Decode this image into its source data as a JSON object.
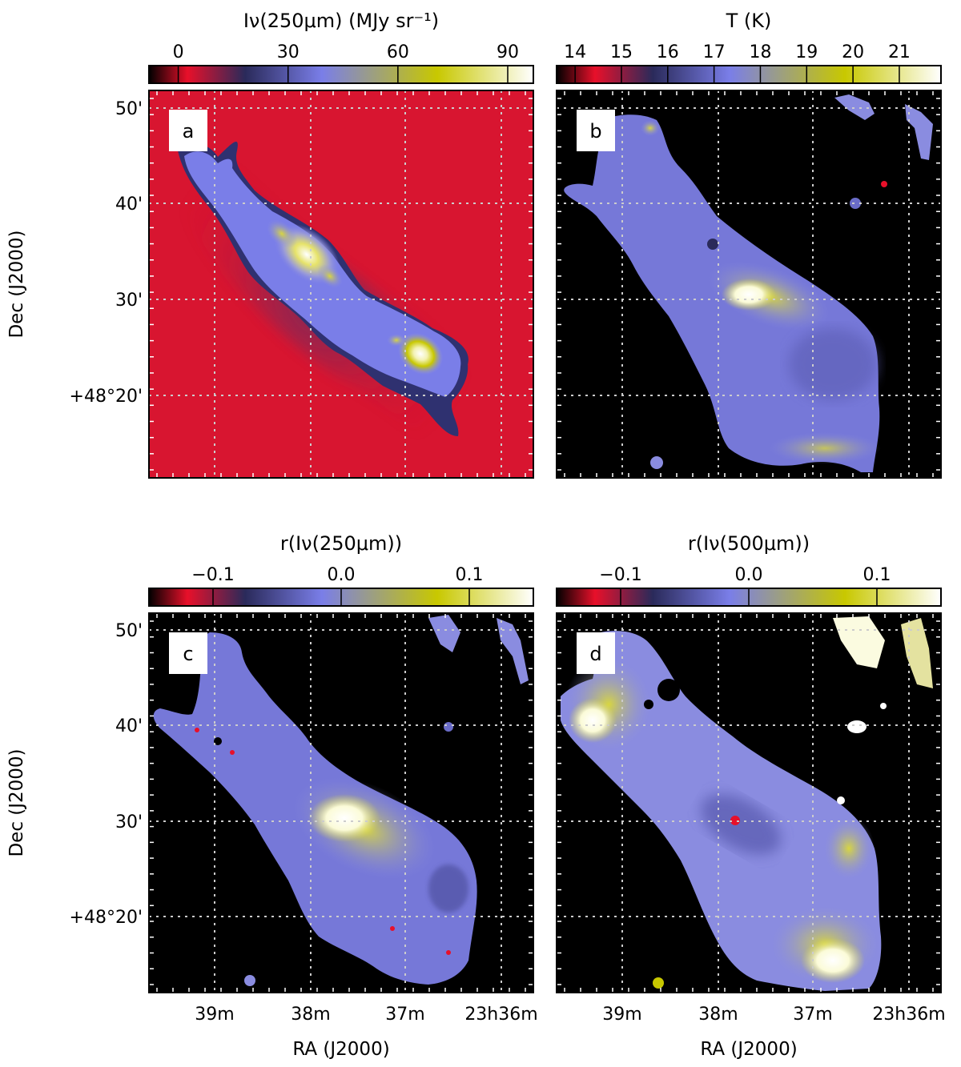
{
  "colors": {
    "background": "#000000",
    "map_bg_a": "#d81530",
    "cmap_stops": [
      "#000000",
      "#e8102a",
      "#2a2a5a",
      "#7a7ee8",
      "#c8c800",
      "#ffffff"
    ],
    "grid": "#cccccc"
  },
  "chart_data": [
    {
      "type": "heatmap",
      "panel": "a",
      "colorbar_title": "Iν(250μm) (MJy sr⁻¹)",
      "colorbar_ticks": [
        0,
        30,
        60,
        90
      ],
      "colorbar_range": [
        -8,
        97
      ],
      "ylabel": "Dec (J2000)",
      "yticks": [
        "50'",
        "40'",
        "30'",
        "+48°20'"
      ],
      "xlabel": "",
      "xticks": []
    },
    {
      "type": "heatmap",
      "panel": "b",
      "colorbar_title": "T (K)",
      "colorbar_ticks": [
        14,
        15,
        16,
        17,
        18,
        19,
        20,
        21
      ],
      "colorbar_range": [
        13.6,
        21.9
      ],
      "ylabel": "",
      "yticks": [],
      "xlabel": "",
      "xticks": []
    },
    {
      "type": "heatmap",
      "panel": "c",
      "colorbar_title": "r(Iν(250μm))",
      "colorbar_ticks": [
        -0.1,
        0.0,
        0.1
      ],
      "colorbar_tick_labels": [
        "−0.1",
        "0.0",
        "0.1"
      ],
      "colorbar_range": [
        -0.15,
        0.15
      ],
      "ylabel": "Dec (J2000)",
      "yticks": [
        "50'",
        "40'",
        "30'",
        "+48°20'"
      ],
      "xlabel": "RA (J2000)",
      "xticks": [
        "39m",
        "38m",
        "37m",
        "23h36m"
      ]
    },
    {
      "type": "heatmap",
      "panel": "d",
      "colorbar_title": "r(Iν(500μm))",
      "colorbar_ticks": [
        -0.1,
        0.0,
        0.1
      ],
      "colorbar_tick_labels": [
        "−0.1",
        "0.0",
        "0.1"
      ],
      "colorbar_range": [
        -0.15,
        0.15
      ],
      "ylabel": "",
      "yticks": [],
      "xlabel": "RA (J2000)",
      "xticks": [
        "39m",
        "38m",
        "37m",
        "23h36m"
      ]
    }
  ]
}
